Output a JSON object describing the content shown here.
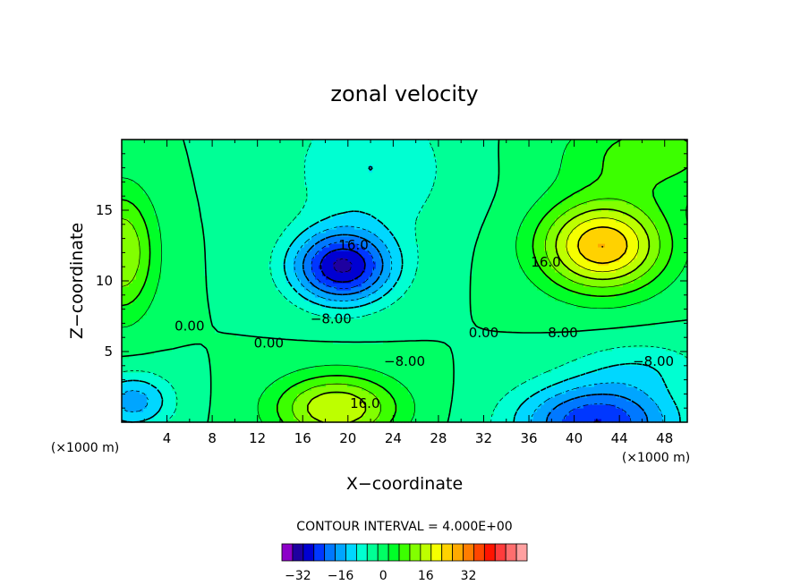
{
  "chart_data": {
    "type": "heatmap",
    "title": "zonal velocity",
    "xlabel": "X−coordinate",
    "ylabel": "Z−coordinate",
    "x_unit": "(×1000 m)",
    "x_unit_right": "(×1000 m)",
    "xlim": [
      0,
      50
    ],
    "ylim": [
      0,
      20
    ],
    "x_ticks": [
      "4",
      "8",
      "12",
      "16",
      "20",
      "24",
      "28",
      "32",
      "36",
      "40",
      "44",
      "48"
    ],
    "y_ticks": [
      "5",
      "10",
      "15"
    ],
    "contour_interval_label": "CONTOUR INTERVAL = 4.000E+00",
    "contour_interval": 4,
    "levels": [
      -36,
      36
    ],
    "colorbar_ticks": [
      "−32",
      "−16",
      "0",
      "16",
      "32"
    ],
    "colorbar_colors": [
      "#8c00c8",
      "#1e00a0",
      "#0000d2",
      "#0037ff",
      "#0078ff",
      "#00a5ff",
      "#00d7ff",
      "#00ffd2",
      "#00ff96",
      "#00ff64",
      "#00ff28",
      "#3cff00",
      "#82ff00",
      "#bdff00",
      "#f5ff00",
      "#ffd200",
      "#ffaa00",
      "#ff7d00",
      "#ff4600",
      "#ff1400",
      "#ff3c3c",
      "#ff6e6e",
      "#ffa0a0"
    ],
    "contour_labels": [
      {
        "text": "16.0",
        "x": 20.5,
        "y": 12.2
      },
      {
        "text": "−8.00",
        "x": 18.5,
        "y": 7.0
      },
      {
        "text": "0.00",
        "x": 6.0,
        "y": 6.5
      },
      {
        "text": "0.00",
        "x": 13.0,
        "y": 5.3
      },
      {
        "text": "−8.00",
        "x": 25.0,
        "y": 4.0
      },
      {
        "text": "16.0",
        "x": 21.5,
        "y": 1.0
      },
      {
        "text": "16.0",
        "x": 37.5,
        "y": 11.0
      },
      {
        "text": "8.00",
        "x": 39.0,
        "y": 6.0
      },
      {
        "text": "0.00",
        "x": 32.0,
        "y": 6.0
      },
      {
        "text": "−8.00",
        "x": 47.0,
        "y": 4.0
      }
    ],
    "field_components": [
      {
        "amplitude": 28,
        "x": 42.5,
        "y": 12.5,
        "sx": 5.5,
        "sy": 3.2
      },
      {
        "amplitude": -28,
        "x": 19.5,
        "y": 11.0,
        "sx": 4.5,
        "sy": 2.6
      },
      {
        "amplitude": 20,
        "x": 19.0,
        "y": 1.0,
        "sx": 5.5,
        "sy": 2.4
      },
      {
        "amplitude": -24,
        "x": 42.0,
        "y": 0.0,
        "sx": 7.0,
        "sy": 2.8
      },
      {
        "amplitude": 16,
        "x": 0.0,
        "y": 12.0,
        "sx": 3.0,
        "sy": 4.5
      },
      {
        "amplitude": -14,
        "x": 1.0,
        "y": 1.5,
        "sx": 3.5,
        "sy": 2.0
      },
      {
        "amplitude": -8,
        "x": 22.0,
        "y": 18.0,
        "sx": 7.0,
        "sy": 5.0
      },
      {
        "amplitude": 10,
        "x": 47.0,
        "y": 19.0,
        "sx": 8.0,
        "sy": 3.0
      },
      {
        "amplitude": -6,
        "x": 46.0,
        "y": 4.0,
        "sx": 6.0,
        "sy": 2.0
      }
    ],
    "grid": false
  }
}
